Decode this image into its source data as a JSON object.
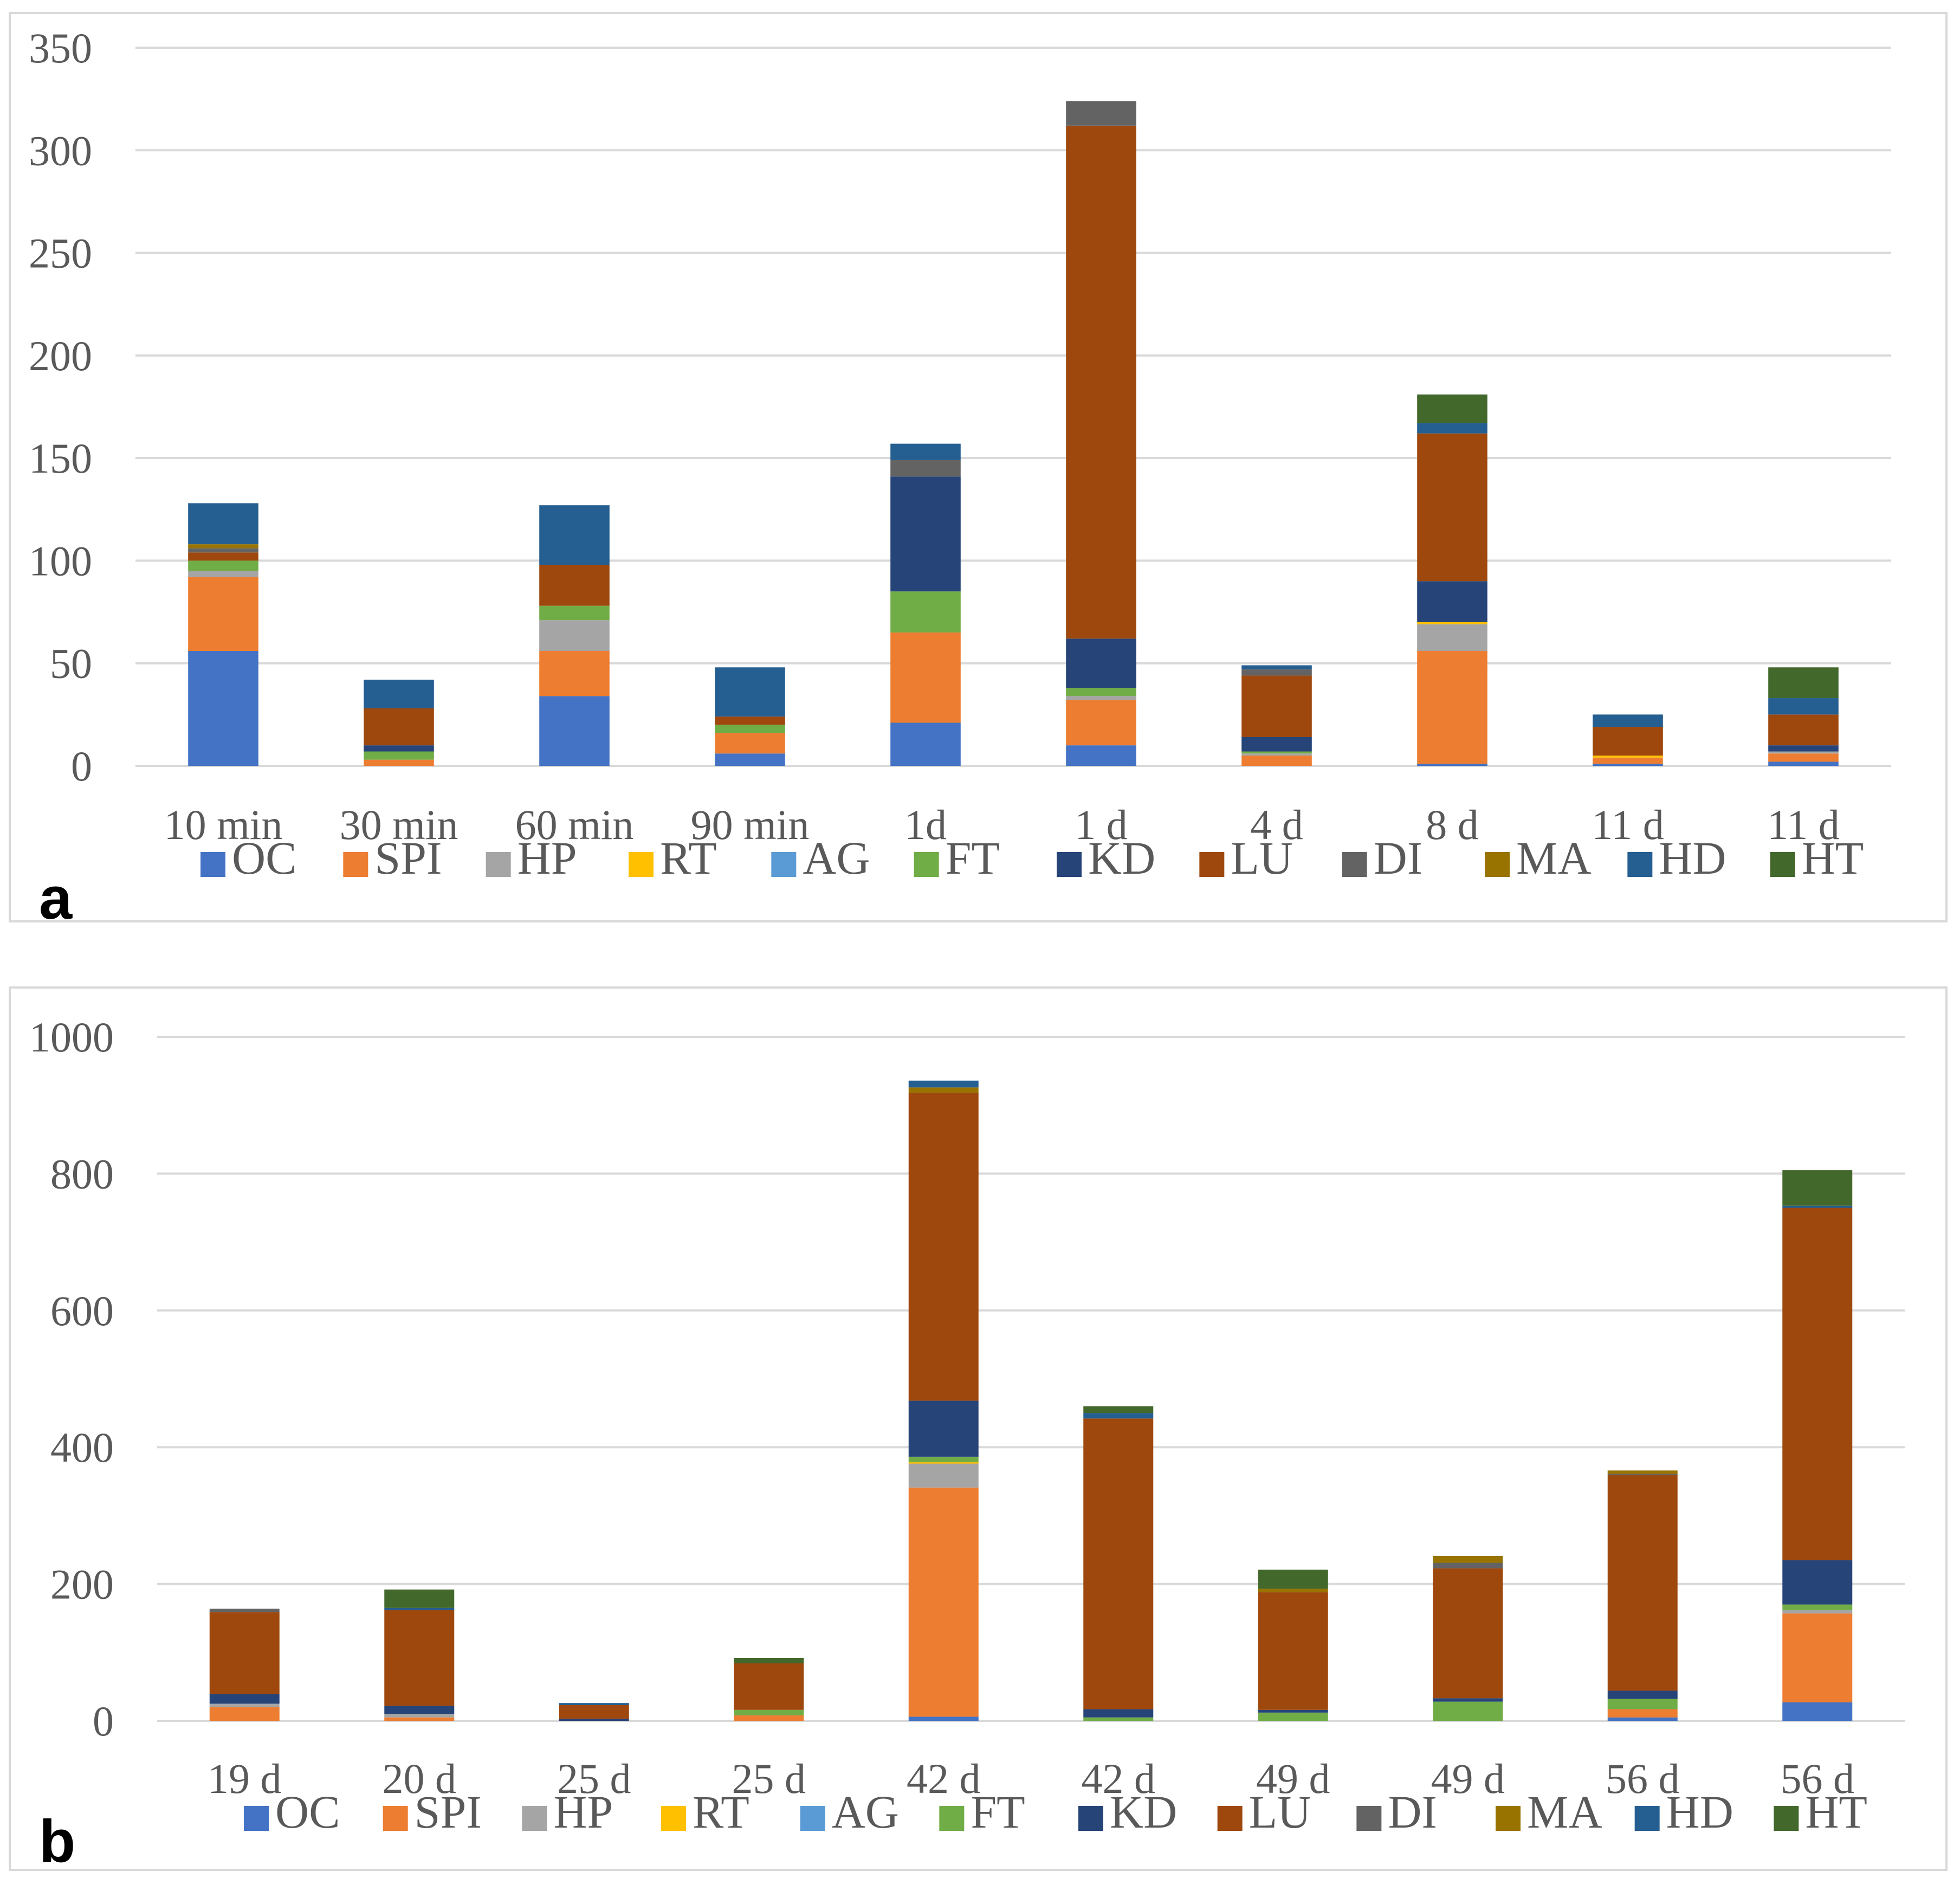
{
  "chart_data": [
    {
      "panel_label": "a",
      "type": "bar",
      "stacked": true,
      "title": "",
      "xlabel": "",
      "ylabel": "",
      "ylim": [
        0,
        350
      ],
      "yticks": [
        0,
        50,
        100,
        150,
        200,
        250,
        300,
        350
      ],
      "grid": true,
      "legend_position": "bottom",
      "categories": [
        "10 min",
        "30 min",
        "60 min",
        "90 min",
        "1d",
        "1 d",
        "4 d",
        "8 d",
        "11 d",
        "11 d"
      ],
      "series": [
        {
          "name": "OC",
          "color": "#4472C4",
          "values": [
            56,
            0,
            34,
            6,
            21,
            10,
            0,
            1,
            1,
            2
          ]
        },
        {
          "name": "SPI",
          "color": "#ED7D31",
          "values": [
            36,
            3,
            22,
            10,
            44,
            22,
            5,
            55,
            3,
            4
          ]
        },
        {
          "name": "HP",
          "color": "#A5A5A5",
          "values": [
            3,
            0,
            15,
            0,
            0,
            2,
            1,
            13,
            0,
            1
          ]
        },
        {
          "name": "RT",
          "color": "#FFC000",
          "values": [
            0,
            0,
            0,
            0,
            0,
            0,
            0,
            1,
            1,
            0
          ]
        },
        {
          "name": "AG",
          "color": "#5B9BD5",
          "values": [
            0,
            0,
            0,
            0,
            0,
            0,
            0,
            0,
            0,
            0
          ]
        },
        {
          "name": "FT",
          "color": "#70AD47",
          "values": [
            5,
            4,
            7,
            4,
            20,
            4,
            1,
            0,
            0,
            0
          ]
        },
        {
          "name": "KD",
          "color": "#264478",
          "values": [
            0,
            3,
            0,
            0,
            56,
            24,
            7,
            20,
            0,
            3
          ]
        },
        {
          "name": "LU",
          "color": "#9E480E",
          "values": [
            4,
            18,
            20,
            4,
            0,
            250,
            30,
            72,
            14,
            15
          ]
        },
        {
          "name": "DI",
          "color": "#636363",
          "values": [
            2,
            0,
            0,
            0,
            8,
            12,
            3,
            0,
            0,
            0
          ]
        },
        {
          "name": "MA",
          "color": "#997300",
          "values": [
            2,
            0,
            0,
            0,
            0,
            0,
            0,
            0,
            0,
            0
          ]
        },
        {
          "name": "HD",
          "color": "#255E91",
          "values": [
            20,
            14,
            29,
            24,
            8,
            0,
            2,
            5,
            6,
            8
          ]
        },
        {
          "name": "HT",
          "color": "#43682B",
          "values": [
            0,
            0,
            0,
            0,
            0,
            0,
            0,
            14,
            0,
            15
          ]
        }
      ]
    },
    {
      "panel_label": "b",
      "type": "bar",
      "stacked": true,
      "title": "",
      "xlabel": "",
      "ylabel": "",
      "ylim": [
        0,
        1000
      ],
      "yticks": [
        0,
        200,
        400,
        600,
        800,
        1000
      ],
      "grid": true,
      "legend_position": "bottom",
      "categories": [
        "19 d",
        "20 d",
        "25 d",
        "25 d",
        "42 d",
        "42 d",
        "49 d",
        "49 d",
        "56 d",
        "56 d"
      ],
      "series": [
        {
          "name": "OC",
          "color": "#4472C4",
          "values": [
            0,
            0,
            0,
            0,
            6,
            0,
            0,
            0,
            5,
            27
          ]
        },
        {
          "name": "SPI",
          "color": "#ED7D31",
          "values": [
            20,
            5,
            0,
            8,
            335,
            0,
            0,
            0,
            12,
            130
          ]
        },
        {
          "name": "HP",
          "color": "#A5A5A5",
          "values": [
            5,
            5,
            0,
            0,
            35,
            0,
            0,
            0,
            0,
            5
          ]
        },
        {
          "name": "RT",
          "color": "#FFC000",
          "values": [
            0,
            0,
            0,
            0,
            2,
            0,
            0,
            0,
            0,
            0
          ]
        },
        {
          "name": "AG",
          "color": "#5B9BD5",
          "values": [
            0,
            0,
            0,
            0,
            0,
            0,
            0,
            0,
            0,
            0
          ]
        },
        {
          "name": "FT",
          "color": "#70AD47",
          "values": [
            0,
            0,
            0,
            8,
            8,
            5,
            12,
            28,
            15,
            8
          ]
        },
        {
          "name": "KD",
          "color": "#264478",
          "values": [
            14,
            12,
            3,
            0,
            82,
            12,
            4,
            5,
            12,
            65
          ]
        },
        {
          "name": "LU",
          "color": "#9E480E",
          "values": [
            120,
            140,
            20,
            68,
            450,
            425,
            172,
            190,
            315,
            515
          ]
        },
        {
          "name": "DI",
          "color": "#636363",
          "values": [
            5,
            0,
            0,
            0,
            0,
            0,
            0,
            8,
            2,
            0
          ]
        },
        {
          "name": "MA",
          "color": "#997300",
          "values": [
            0,
            0,
            0,
            0,
            8,
            0,
            5,
            10,
            5,
            0
          ]
        },
        {
          "name": "HD",
          "color": "#255E91",
          "values": [
            0,
            3,
            3,
            0,
            10,
            8,
            0,
            0,
            0,
            3
          ]
        },
        {
          "name": "HT",
          "color": "#43682B",
          "values": [
            0,
            27,
            0,
            8,
            0,
            10,
            28,
            0,
            0,
            52
          ]
        }
      ]
    }
  ]
}
